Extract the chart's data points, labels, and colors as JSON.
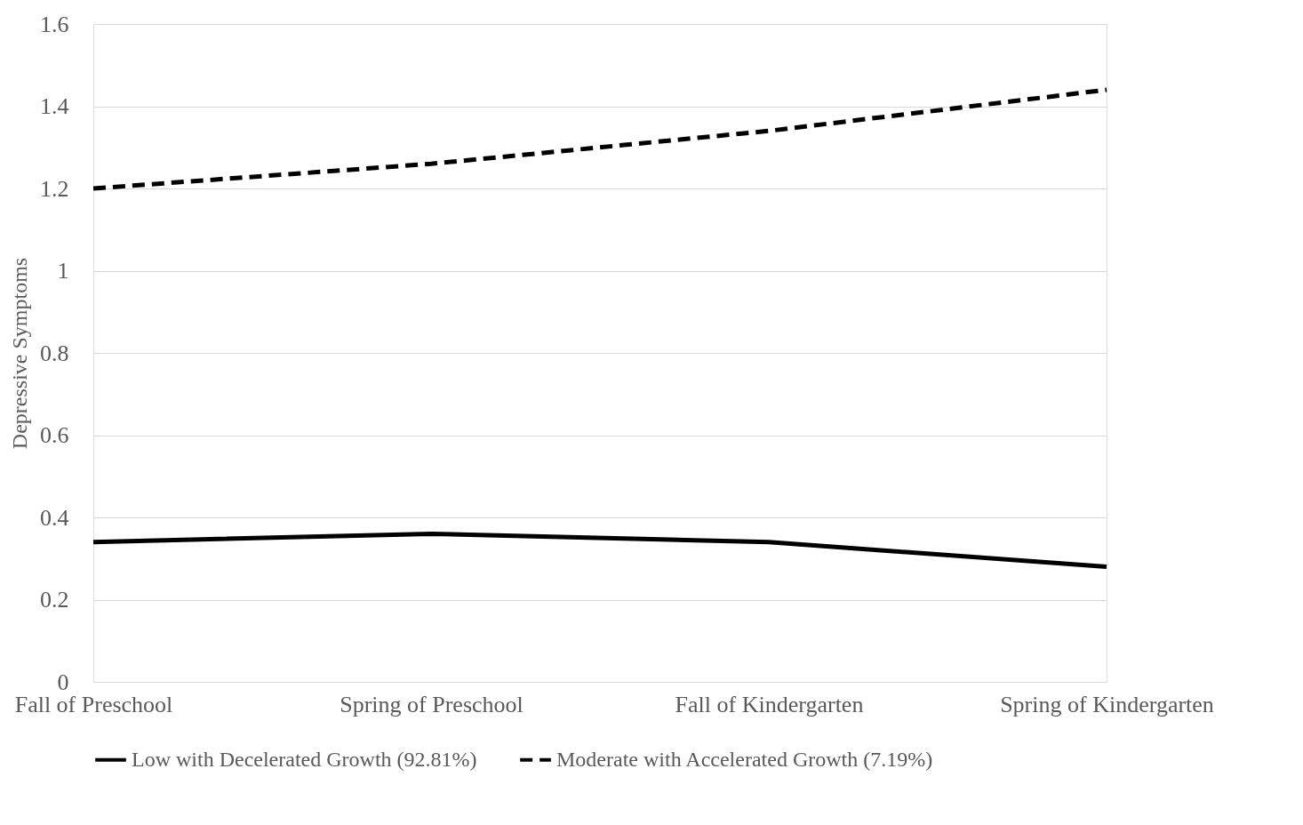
{
  "chart_data": {
    "type": "line",
    "ylabel": "Depressive Symptoms",
    "categories": [
      "Fall of Preschool",
      "Spring of Preschool",
      "Fall of Kindergarten",
      "Spring of Kindergarten"
    ],
    "series": [
      {
        "name": "Low with Decelerated Growth (92.81%)",
        "color": "#000000",
        "line_style": "solid",
        "values": [
          0.34,
          0.36,
          0.34,
          0.28
        ]
      },
      {
        "name": "Moderate with Accelerated Growth (7.19%)",
        "color": "#000000",
        "line_style": "dashed",
        "values": [
          1.2,
          1.26,
          1.34,
          1.44
        ]
      }
    ],
    "ylim": [
      0,
      1.6
    ],
    "yticks": [
      0,
      0.2,
      0.4,
      0.6,
      0.8,
      1,
      1.2,
      1.4,
      1.6
    ],
    "grid": "y",
    "legend": "bottom",
    "marker": "none"
  }
}
